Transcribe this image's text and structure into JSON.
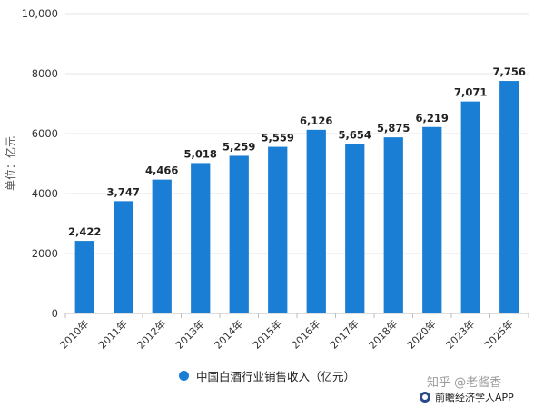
{
  "chart_data": {
    "type": "bar",
    "categories": [
      "2010年",
      "2011年",
      "2012年",
      "2013年",
      "2014年",
      "2015年",
      "2016年",
      "2017年",
      "2018年",
      "2020年",
      "2023年",
      "2025年"
    ],
    "series": [
      {
        "name": "中国白酒行业销售收入（亿元）",
        "values": [
          2422,
          3747,
          4466,
          5018,
          5259,
          5559,
          6126,
          5654,
          5875,
          6219,
          7071,
          7756
        ],
        "labels": [
          "2,422",
          "3,747",
          "4,466",
          "5,018",
          "5,259",
          "5,559",
          "6,126",
          "5,654",
          "5,875",
          "6,219",
          "7,071",
          "7,756"
        ]
      }
    ],
    "ylabel": "单位：亿元",
    "yticks": [
      "0",
      "2000",
      "4000",
      "6000",
      "8000",
      "10,000"
    ],
    "ylim": [
      0,
      10000
    ],
    "grid": true,
    "legend": "bottom-center",
    "bar_color": "#1a7fd4"
  },
  "watermark": {
    "zhihu": "知乎 @老酱香",
    "app": "前瞻经济学人APP"
  }
}
